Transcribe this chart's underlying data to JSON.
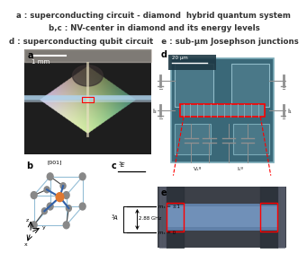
{
  "title_lines": [
    "a : superconducting circuit - diamond  hybrid quantum system",
    "b,c : NV-center in diamond and its energy levels",
    "d : superconducting qubit circuit   e : sub-μm Josephson junctions"
  ],
  "title_bg": "#eeeeee",
  "title_fontsize": 6.2,
  "title_font_weight": "bold",
  "bg_color": "#ffffff",
  "panel_a_label": "a",
  "panel_b_label": "b",
  "panel_c_label": "c",
  "panel_d_label": "d",
  "panel_e_label": "e",
  "panel_label_fontsize": 7,
  "scale_bar_a": "1 mm",
  "scale_bar_d": "20 μm",
  "circuit_bg": "#3a6878",
  "circuit_pad": "#4a7888",
  "junction_bg": "#454a55",
  "ms1_label": "mₛ = ±1",
  "ms0_label": "mₛ = 0",
  "freq_label": "2.88 GHz",
  "3E_label": "^3E",
  "3A_label": "^3A",
  "vsg_label": "Vₛᵍ",
  "Isg_label": "Iₛᵍ",
  "i1_label": "i₁",
  "i2_label": "i₂"
}
